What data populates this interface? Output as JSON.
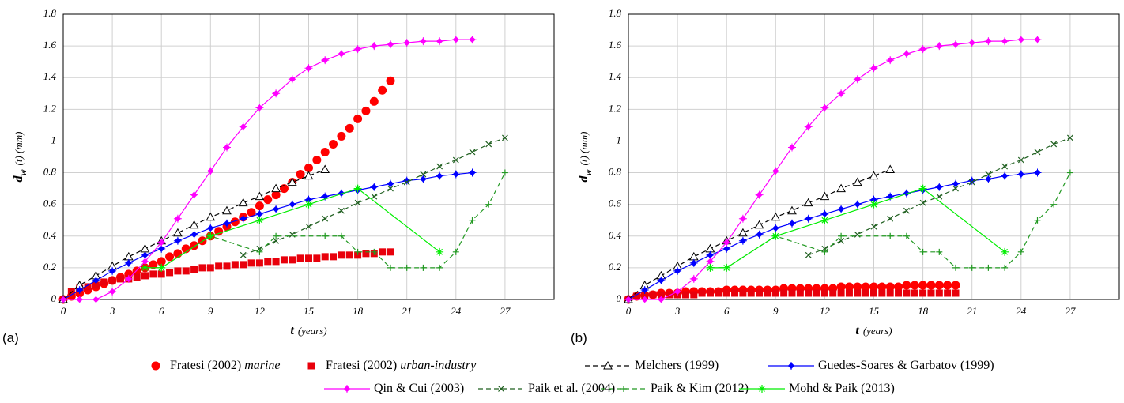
{
  "chart_data": [
    {
      "type": "line",
      "panel_label": "(a)",
      "xlabel": {
        "symbol": "t",
        "rest": "(years)"
      },
      "ylabel": {
        "symbol": "d",
        "subscript": "w",
        "rest": "(t) (mm)"
      },
      "xlim": [
        0,
        30
      ],
      "ylim": [
        0,
        1.8
      ],
      "xticks": [
        0,
        3,
        6,
        9,
        12,
        15,
        18,
        21,
        24,
        27
      ],
      "yticks": [
        0,
        0.2,
        0.4,
        0.6,
        0.8,
        1,
        1.2,
        1.4,
        1.6,
        1.8
      ],
      "grid": true,
      "series": [
        {
          "name": "Fratesi (2002)",
          "qualifier": "marine",
          "color": "#ff0000",
          "marker": "circle",
          "line": false,
          "x": [
            0,
            0.5,
            1,
            1.5,
            2,
            2.5,
            3,
            3.5,
            4,
            4.5,
            5,
            5.5,
            6,
            6.5,
            7,
            7.5,
            8,
            8.5,
            9,
            9.5,
            10,
            10.5,
            11,
            11.5,
            12,
            12.5,
            13,
            13.5,
            14,
            14.5,
            15,
            15.5,
            16,
            16.5,
            17,
            17.5,
            18,
            18.5,
            19,
            19.5,
            20
          ],
          "values": [
            0,
            0.02,
            0.04,
            0.06,
            0.08,
            0.1,
            0.12,
            0.14,
            0.16,
            0.18,
            0.2,
            0.22,
            0.24,
            0.27,
            0.29,
            0.32,
            0.34,
            0.37,
            0.4,
            0.43,
            0.46,
            0.49,
            0.52,
            0.55,
            0.59,
            0.63,
            0.66,
            0.7,
            0.74,
            0.79,
            0.83,
            0.88,
            0.93,
            0.98,
            1.03,
            1.08,
            1.14,
            1.19,
            1.25,
            1.32,
            1.38
          ]
        },
        {
          "name": "Fratesi (2002)",
          "qualifier": "urban-industry",
          "color": "#e8000b",
          "marker": "square",
          "line": false,
          "x": [
            0,
            0.5,
            1,
            1.5,
            2,
            2.5,
            3,
            3.5,
            4,
            4.5,
            5,
            5.5,
            6,
            6.5,
            7,
            7.5,
            8,
            8.5,
            9,
            9.5,
            10,
            10.5,
            11,
            11.5,
            12,
            12.5,
            13,
            13.5,
            14,
            14.5,
            15,
            15.5,
            16,
            16.5,
            17,
            17.5,
            18,
            18.5,
            19,
            19.5,
            20
          ],
          "values": [
            0,
            0.05,
            0.07,
            0.08,
            0.09,
            0.11,
            0.12,
            0.13,
            0.13,
            0.14,
            0.15,
            0.16,
            0.16,
            0.17,
            0.18,
            0.18,
            0.19,
            0.2,
            0.2,
            0.21,
            0.21,
            0.22,
            0.22,
            0.23,
            0.23,
            0.24,
            0.24,
            0.25,
            0.25,
            0.26,
            0.26,
            0.26,
            0.27,
            0.27,
            0.28,
            0.28,
            0.28,
            0.29,
            0.29,
            0.3,
            0.3
          ]
        },
        {
          "name": "Melchers (1999)",
          "color": "#000000",
          "marker": "triangle",
          "line": true,
          "dash": true,
          "x": [
            0,
            1,
            2,
            3,
            4,
            5,
            6,
            7,
            8,
            9,
            10,
            11,
            12,
            13,
            14,
            15,
            16
          ],
          "values": [
            0,
            0.09,
            0.15,
            0.21,
            0.27,
            0.32,
            0.37,
            0.42,
            0.47,
            0.52,
            0.56,
            0.61,
            0.65,
            0.7,
            0.74,
            0.78,
            0.82
          ]
        },
        {
          "name": "Guedes-Soares & Garbatov (1999)",
          "color": "#0000ff",
          "marker": "diamond",
          "line": true,
          "dash": false,
          "x": [
            0,
            1,
            2,
            3,
            4,
            5,
            6,
            7,
            8,
            9,
            10,
            11,
            12,
            13,
            14,
            15,
            16,
            17,
            18,
            19,
            20,
            21,
            22,
            23,
            24,
            25
          ],
          "values": [
            0,
            0.06,
            0.12,
            0.18,
            0.23,
            0.28,
            0.32,
            0.37,
            0.41,
            0.45,
            0.48,
            0.51,
            0.54,
            0.57,
            0.6,
            0.63,
            0.65,
            0.67,
            0.69,
            0.71,
            0.73,
            0.75,
            0.76,
            0.78,
            0.79,
            0.8
          ]
        },
        {
          "name": "Qin & Cui (2003)",
          "color": "#ff00ff",
          "marker": "diamond",
          "line": true,
          "dash": false,
          "x": [
            0,
            1,
            2,
            3,
            4,
            5,
            6,
            7,
            8,
            9,
            10,
            11,
            12,
            13,
            14,
            15,
            16,
            17,
            18,
            19,
            20,
            21,
            22,
            23,
            24,
            25
          ],
          "values": [
            0,
            0,
            0,
            0.05,
            0.13,
            0.24,
            0.36,
            0.51,
            0.66,
            0.81,
            0.96,
            1.09,
            1.21,
            1.3,
            1.39,
            1.46,
            1.51,
            1.55,
            1.58,
            1.6,
            1.61,
            1.62,
            1.63,
            1.63,
            1.64,
            1.64
          ]
        },
        {
          "name": "Paik et al. (2004)",
          "color": "#1f5f1f",
          "marker": "x",
          "line": true,
          "dash": true,
          "x": [
            11,
            12,
            13,
            14,
            15,
            16,
            17,
            18,
            19,
            20,
            21,
            22,
            23,
            24,
            25,
            26,
            27
          ],
          "values": [
            0.28,
            0.32,
            0.37,
            0.41,
            0.46,
            0.51,
            0.56,
            0.61,
            0.65,
            0.7,
            0.74,
            0.79,
            0.84,
            0.88,
            0.93,
            0.98,
            1.02
          ]
        },
        {
          "name": "Paik & Kim (2012)",
          "color": "#229922",
          "marker": "plus",
          "line": true,
          "dash": true,
          "x": [
            5,
            6,
            9,
            12,
            13,
            16,
            17,
            18,
            19,
            20,
            21,
            22,
            23,
            24,
            25,
            26,
            27
          ],
          "values": [
            0.2,
            0.2,
            0.4,
            0.3,
            0.4,
            0.4,
            0.4,
            0.3,
            0.3,
            0.2,
            0.2,
            0.2,
            0.2,
            0.3,
            0.5,
            0.6,
            0.8
          ]
        },
        {
          "name": "Mohd & Paik (2013)",
          "color": "#00ee00",
          "marker": "asterisk",
          "line": true,
          "dash": false,
          "x": [
            5,
            6,
            9,
            12,
            15,
            18,
            23
          ],
          "values": [
            0.2,
            0.2,
            0.4,
            0.5,
            0.6,
            0.7,
            0.3
          ]
        }
      ]
    },
    {
      "type": "line",
      "panel_label": "(b)",
      "xlabel": {
        "symbol": "t",
        "rest": "(years)"
      },
      "ylabel": {
        "symbol": "d",
        "subscript": "w",
        "rest": "(t) (mm)"
      },
      "xlim": [
        0,
        30
      ],
      "ylim": [
        0,
        1.8
      ],
      "xticks": [
        0,
        3,
        6,
        9,
        12,
        15,
        18,
        21,
        24,
        27
      ],
      "yticks": [
        0,
        0.2,
        0.4,
        0.6,
        0.8,
        1,
        1.2,
        1.4,
        1.6,
        1.8
      ],
      "grid": true,
      "series": [
        {
          "color": "#ff0000",
          "marker": "circle",
          "line": false,
          "x": [
            0,
            0.5,
            1,
            1.5,
            2,
            2.5,
            3,
            3.5,
            4,
            4.5,
            5,
            5.5,
            6,
            6.5,
            7,
            7.5,
            8,
            8.5,
            9,
            9.5,
            10,
            10.5,
            11,
            11.5,
            12,
            12.5,
            13,
            13.5,
            14,
            14.5,
            15,
            15.5,
            16,
            16.5,
            17,
            17.5,
            18,
            18.5,
            19,
            19.5,
            20
          ],
          "values": [
            0,
            0.02,
            0.03,
            0.03,
            0.04,
            0.04,
            0.04,
            0.05,
            0.05,
            0.05,
            0.05,
            0.05,
            0.06,
            0.06,
            0.06,
            0.06,
            0.06,
            0.06,
            0.06,
            0.07,
            0.07,
            0.07,
            0.07,
            0.07,
            0.07,
            0.07,
            0.08,
            0.08,
            0.08,
            0.08,
            0.08,
            0.08,
            0.08,
            0.08,
            0.09,
            0.09,
            0.09,
            0.09,
            0.09,
            0.09,
            0.09
          ]
        },
        {
          "color": "#e8000b",
          "marker": "square",
          "line": false,
          "x": [
            0,
            0.5,
            1,
            1.5,
            2,
            2.5,
            3,
            3.5,
            4,
            4.5,
            5,
            5.5,
            6,
            6.5,
            7,
            7.5,
            8,
            8.5,
            9,
            9.5,
            10,
            10.5,
            11,
            11.5,
            12,
            12.5,
            13,
            13.5,
            14,
            14.5,
            15,
            15.5,
            16,
            16.5,
            17,
            17.5,
            18,
            18.5,
            19,
            19.5,
            20
          ],
          "values": [
            0,
            0.02,
            0.02,
            0.03,
            0.03,
            0.03,
            0.03,
            0.03,
            0.03,
            0.04,
            0.04,
            0.04,
            0.04,
            0.04,
            0.04,
            0.04,
            0.04,
            0.04,
            0.04,
            0.04,
            0.04,
            0.04,
            0.04,
            0.04,
            0.04,
            0.04,
            0.04,
            0.04,
            0.04,
            0.04,
            0.04,
            0.04,
            0.04,
            0.04,
            0.04,
            0.04,
            0.04,
            0.04,
            0.04,
            0.04,
            0.04
          ]
        },
        {
          "color": "#000000",
          "marker": "triangle",
          "line": true,
          "dash": true,
          "x": [
            0,
            1,
            2,
            3,
            4,
            5,
            6,
            7,
            8,
            9,
            10,
            11,
            12,
            13,
            14,
            15,
            16
          ],
          "values": [
            0,
            0.09,
            0.15,
            0.21,
            0.27,
            0.32,
            0.37,
            0.42,
            0.47,
            0.52,
            0.56,
            0.61,
            0.65,
            0.7,
            0.74,
            0.78,
            0.82
          ]
        },
        {
          "color": "#0000ff",
          "marker": "diamond",
          "line": true,
          "dash": false,
          "x": [
            0,
            1,
            2,
            3,
            4,
            5,
            6,
            7,
            8,
            9,
            10,
            11,
            12,
            13,
            14,
            15,
            16,
            17,
            18,
            19,
            20,
            21,
            22,
            23,
            24,
            25
          ],
          "values": [
            0,
            0.06,
            0.12,
            0.18,
            0.23,
            0.28,
            0.32,
            0.37,
            0.41,
            0.45,
            0.48,
            0.51,
            0.54,
            0.57,
            0.6,
            0.63,
            0.65,
            0.67,
            0.69,
            0.71,
            0.73,
            0.75,
            0.76,
            0.78,
            0.79,
            0.8
          ]
        },
        {
          "color": "#ff00ff",
          "marker": "diamond",
          "line": true,
          "dash": false,
          "x": [
            0,
            1,
            2,
            3,
            4,
            5,
            6,
            7,
            8,
            9,
            10,
            11,
            12,
            13,
            14,
            15,
            16,
            17,
            18,
            19,
            20,
            21,
            22,
            23,
            24,
            25
          ],
          "values": [
            0,
            0,
            0,
            0.05,
            0.13,
            0.24,
            0.36,
            0.51,
            0.66,
            0.81,
            0.96,
            1.09,
            1.21,
            1.3,
            1.39,
            1.46,
            1.51,
            1.55,
            1.58,
            1.6,
            1.61,
            1.62,
            1.63,
            1.63,
            1.64,
            1.64
          ]
        },
        {
          "color": "#1f5f1f",
          "marker": "x",
          "line": true,
          "dash": true,
          "x": [
            11,
            12,
            13,
            14,
            15,
            16,
            17,
            18,
            19,
            20,
            21,
            22,
            23,
            24,
            25,
            26,
            27
          ],
          "values": [
            0.28,
            0.32,
            0.37,
            0.41,
            0.46,
            0.51,
            0.56,
            0.61,
            0.65,
            0.7,
            0.74,
            0.79,
            0.84,
            0.88,
            0.93,
            0.98,
            1.02
          ]
        },
        {
          "color": "#229922",
          "marker": "plus",
          "line": true,
          "dash": true,
          "x": [
            5,
            6,
            9,
            12,
            13,
            16,
            17,
            18,
            19,
            20,
            21,
            22,
            23,
            24,
            25,
            26,
            27
          ],
          "values": [
            0.2,
            0.2,
            0.4,
            0.3,
            0.4,
            0.4,
            0.4,
            0.3,
            0.3,
            0.2,
            0.2,
            0.2,
            0.2,
            0.3,
            0.5,
            0.6,
            0.8
          ]
        },
        {
          "color": "#00ee00",
          "marker": "asterisk",
          "line": true,
          "dash": false,
          "x": [
            5,
            6,
            9,
            12,
            15,
            18,
            23
          ],
          "values": [
            0.2,
            0.2,
            0.4,
            0.5,
            0.6,
            0.7,
            0.3
          ]
        }
      ]
    }
  ]
}
